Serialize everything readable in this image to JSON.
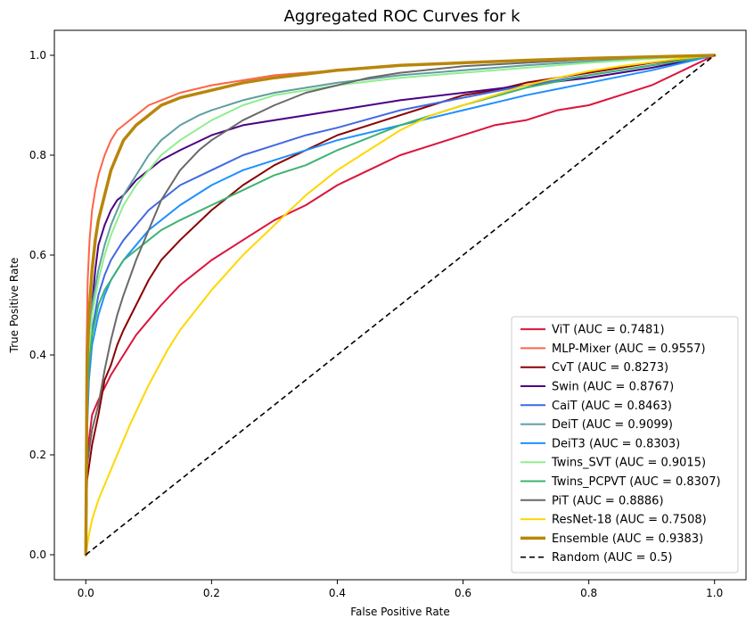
{
  "chart_data": {
    "type": "line",
    "title": "Aggregated ROC Curves for k",
    "xlabel": "False Positive Rate",
    "ylabel": "True Positive Rate",
    "xlim": [
      -0.05,
      1.05
    ],
    "ylim": [
      -0.05,
      1.05
    ],
    "xticks": [
      "0.0",
      "0.2",
      "0.4",
      "0.6",
      "0.8",
      "1.0"
    ],
    "yticks": [
      "0.0",
      "0.2",
      "0.4",
      "0.6",
      "0.8",
      "1.0"
    ],
    "legend_position": "lower-right",
    "grid": false,
    "series": [
      {
        "name": "ViT (AUC = 0.7481)",
        "color": "#dc143c",
        "width": 2,
        "x": [
          0,
          0.002,
          0.01,
          0.02,
          0.04,
          0.06,
          0.08,
          0.1,
          0.12,
          0.15,
          0.18,
          0.2,
          0.25,
          0.3,
          0.35,
          0.4,
          0.45,
          0.5,
          0.55,
          0.6,
          0.65,
          0.7,
          0.75,
          0.8,
          0.85,
          0.9,
          0.95,
          1.0
        ],
        "y": [
          0,
          0.2,
          0.28,
          0.31,
          0.36,
          0.4,
          0.44,
          0.47,
          0.5,
          0.54,
          0.57,
          0.59,
          0.63,
          0.67,
          0.7,
          0.74,
          0.77,
          0.8,
          0.82,
          0.84,
          0.86,
          0.87,
          0.89,
          0.9,
          0.92,
          0.94,
          0.97,
          1.0
        ]
      },
      {
        "name": "MLP-Mixer (AUC = 0.9557)",
        "color": "#ff6347",
        "width": 2,
        "x": [
          0,
          0.001,
          0.003,
          0.006,
          0.01,
          0.015,
          0.02,
          0.03,
          0.04,
          0.05,
          0.06,
          0.08,
          0.1,
          0.12,
          0.15,
          0.2,
          0.25,
          0.3,
          0.4,
          0.5,
          0.6,
          0.7,
          0.8,
          0.9,
          1.0
        ],
        "y": [
          0,
          0.4,
          0.55,
          0.63,
          0.69,
          0.73,
          0.76,
          0.8,
          0.83,
          0.85,
          0.86,
          0.88,
          0.9,
          0.91,
          0.925,
          0.94,
          0.95,
          0.96,
          0.97,
          0.98,
          0.985,
          0.99,
          0.993,
          0.997,
          1.0
        ]
      },
      {
        "name": "CvT (AUC = 0.8273)",
        "color": "#8b0000",
        "width": 2,
        "x": [
          0,
          0.002,
          0.01,
          0.02,
          0.03,
          0.04,
          0.05,
          0.06,
          0.08,
          0.1,
          0.12,
          0.15,
          0.2,
          0.25,
          0.3,
          0.35,
          0.4,
          0.45,
          0.5,
          0.55,
          0.6,
          0.65,
          0.7,
          0.8,
          0.9,
          1.0
        ],
        "y": [
          0,
          0.15,
          0.22,
          0.28,
          0.35,
          0.38,
          0.42,
          0.45,
          0.5,
          0.55,
          0.59,
          0.63,
          0.69,
          0.74,
          0.78,
          0.81,
          0.84,
          0.86,
          0.88,
          0.9,
          0.92,
          0.93,
          0.945,
          0.965,
          0.985,
          1.0
        ]
      },
      {
        "name": "Swin (AUC = 0.8767)",
        "color": "#4b0082",
        "width": 2,
        "x": [
          0,
          0.002,
          0.005,
          0.01,
          0.015,
          0.02,
          0.03,
          0.04,
          0.05,
          0.06,
          0.08,
          0.1,
          0.12,
          0.15,
          0.2,
          0.25,
          0.3,
          0.35,
          0.4,
          0.5,
          0.6,
          0.7,
          0.8,
          0.9,
          1.0
        ],
        "y": [
          0,
          0.3,
          0.4,
          0.5,
          0.57,
          0.62,
          0.66,
          0.69,
          0.71,
          0.72,
          0.75,
          0.77,
          0.79,
          0.81,
          0.84,
          0.86,
          0.87,
          0.88,
          0.89,
          0.91,
          0.925,
          0.94,
          0.955,
          0.975,
          1.0
        ]
      },
      {
        "name": "CaiT (AUC = 0.8463)",
        "color": "#4169e1",
        "width": 2,
        "x": [
          0,
          0.002,
          0.005,
          0.01,
          0.02,
          0.03,
          0.04,
          0.05,
          0.06,
          0.08,
          0.1,
          0.12,
          0.15,
          0.2,
          0.25,
          0.3,
          0.35,
          0.4,
          0.5,
          0.6,
          0.7,
          0.8,
          0.9,
          1.0
        ],
        "y": [
          0,
          0.28,
          0.38,
          0.45,
          0.52,
          0.56,
          0.59,
          0.61,
          0.63,
          0.66,
          0.69,
          0.71,
          0.74,
          0.77,
          0.8,
          0.82,
          0.84,
          0.855,
          0.89,
          0.915,
          0.94,
          0.96,
          0.98,
          1.0
        ]
      },
      {
        "name": "DeiT (AUC = 0.9099)",
        "color": "#5f9ea0",
        "width": 2,
        "x": [
          0,
          0.002,
          0.005,
          0.01,
          0.02,
          0.03,
          0.04,
          0.05,
          0.06,
          0.08,
          0.1,
          0.12,
          0.15,
          0.18,
          0.2,
          0.25,
          0.3,
          0.35,
          0.4,
          0.5,
          0.6,
          0.7,
          0.8,
          0.9,
          1.0
        ],
        "y": [
          0,
          0.32,
          0.42,
          0.5,
          0.57,
          0.62,
          0.66,
          0.69,
          0.72,
          0.76,
          0.8,
          0.83,
          0.86,
          0.88,
          0.89,
          0.91,
          0.925,
          0.935,
          0.945,
          0.96,
          0.97,
          0.98,
          0.988,
          0.995,
          1.0
        ]
      },
      {
        "name": "DeiT3 (AUC = 0.8303)",
        "color": "#1e90ff",
        "width": 2,
        "x": [
          0,
          0.002,
          0.005,
          0.01,
          0.02,
          0.03,
          0.04,
          0.05,
          0.06,
          0.08,
          0.1,
          0.12,
          0.15,
          0.2,
          0.25,
          0.3,
          0.35,
          0.4,
          0.5,
          0.6,
          0.7,
          0.8,
          0.9,
          1.0
        ],
        "y": [
          0,
          0.25,
          0.35,
          0.42,
          0.48,
          0.52,
          0.55,
          0.57,
          0.59,
          0.62,
          0.65,
          0.67,
          0.7,
          0.74,
          0.77,
          0.79,
          0.81,
          0.83,
          0.86,
          0.89,
          0.92,
          0.945,
          0.97,
          1.0
        ]
      },
      {
        "name": "Twins_SVT (AUC = 0.9015)",
        "color": "#90ee90",
        "width": 2,
        "x": [
          0,
          0.002,
          0.005,
          0.01,
          0.02,
          0.03,
          0.04,
          0.05,
          0.06,
          0.08,
          0.1,
          0.12,
          0.15,
          0.2,
          0.25,
          0.3,
          0.35,
          0.4,
          0.5,
          0.6,
          0.7,
          0.8,
          0.9,
          1.0
        ],
        "y": [
          0,
          0.3,
          0.4,
          0.48,
          0.55,
          0.6,
          0.64,
          0.67,
          0.7,
          0.74,
          0.77,
          0.8,
          0.83,
          0.87,
          0.9,
          0.92,
          0.93,
          0.94,
          0.955,
          0.965,
          0.975,
          0.985,
          0.993,
          1.0
        ]
      },
      {
        "name": "Twins_PCPVT (AUC = 0.8307)",
        "color": "#3cb371",
        "width": 2,
        "x": [
          0,
          0.002,
          0.005,
          0.01,
          0.02,
          0.03,
          0.04,
          0.05,
          0.06,
          0.08,
          0.1,
          0.12,
          0.15,
          0.2,
          0.25,
          0.3,
          0.35,
          0.4,
          0.5,
          0.6,
          0.7,
          0.8,
          0.9,
          1.0
        ],
        "y": [
          0,
          0.3,
          0.38,
          0.44,
          0.5,
          0.53,
          0.55,
          0.57,
          0.59,
          0.61,
          0.63,
          0.65,
          0.67,
          0.7,
          0.73,
          0.76,
          0.78,
          0.81,
          0.86,
          0.9,
          0.935,
          0.96,
          0.98,
          1.0
        ]
      },
      {
        "name": "PiT (AUC = 0.8886)",
        "color": "#696969",
        "width": 2,
        "x": [
          0,
          0.002,
          0.01,
          0.02,
          0.03,
          0.04,
          0.05,
          0.06,
          0.08,
          0.1,
          0.12,
          0.15,
          0.18,
          0.2,
          0.25,
          0.3,
          0.35,
          0.4,
          0.45,
          0.5,
          0.6,
          0.7,
          0.8,
          0.9,
          1.0
        ],
        "y": [
          0,
          0.18,
          0.25,
          0.3,
          0.37,
          0.43,
          0.48,
          0.52,
          0.59,
          0.65,
          0.71,
          0.77,
          0.81,
          0.83,
          0.87,
          0.9,
          0.925,
          0.94,
          0.955,
          0.965,
          0.978,
          0.985,
          0.992,
          0.997,
          1.0
        ]
      },
      {
        "name": "ResNet-18 (AUC = 0.7508)",
        "color": "#ffd700",
        "width": 2,
        "x": [
          0,
          0.005,
          0.01,
          0.02,
          0.03,
          0.05,
          0.07,
          0.1,
          0.13,
          0.15,
          0.2,
          0.25,
          0.3,
          0.35,
          0.4,
          0.45,
          0.5,
          0.55,
          0.6,
          0.65,
          0.7,
          0.75,
          0.8,
          0.85,
          0.9,
          0.95,
          1.0
        ],
        "y": [
          0,
          0.04,
          0.07,
          0.11,
          0.14,
          0.2,
          0.26,
          0.34,
          0.41,
          0.45,
          0.53,
          0.6,
          0.66,
          0.72,
          0.77,
          0.81,
          0.85,
          0.88,
          0.9,
          0.92,
          0.94,
          0.955,
          0.968,
          0.978,
          0.986,
          0.994,
          1.0
        ]
      },
      {
        "name": "Ensemble (AUC = 0.9383)",
        "color": "#b8860b",
        "width": 3.5,
        "x": [
          0,
          0.002,
          0.005,
          0.01,
          0.015,
          0.02,
          0.03,
          0.04,
          0.05,
          0.06,
          0.08,
          0.1,
          0.12,
          0.15,
          0.2,
          0.25,
          0.3,
          0.4,
          0.5,
          0.6,
          0.7,
          0.8,
          0.9,
          1.0
        ],
        "y": [
          0,
          0.38,
          0.48,
          0.57,
          0.63,
          0.67,
          0.72,
          0.77,
          0.8,
          0.83,
          0.86,
          0.88,
          0.9,
          0.915,
          0.93,
          0.945,
          0.955,
          0.97,
          0.98,
          0.985,
          0.99,
          0.994,
          0.997,
          1.0
        ]
      },
      {
        "name": "Random (AUC = 0.5)",
        "color": "#000000",
        "width": 1.6,
        "dashed": true,
        "x": [
          0,
          1
        ],
        "y": [
          0,
          1
        ]
      }
    ]
  }
}
